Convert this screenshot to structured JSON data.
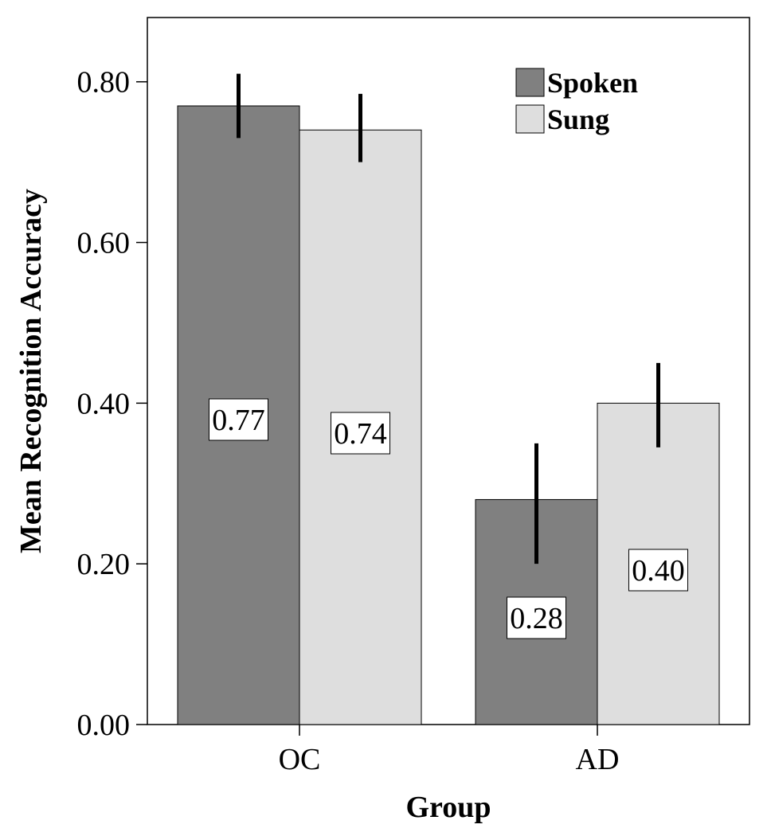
{
  "chart_data": {
    "type": "bar",
    "categories": [
      "OC",
      "AD"
    ],
    "series": [
      {
        "name": "Spoken",
        "values": [
          0.77,
          0.28
        ],
        "labels": [
          "0.77",
          "0.28"
        ],
        "error_low": [
          0.73,
          0.2
        ],
        "error_high": [
          0.81,
          0.35
        ],
        "color": "#808080"
      },
      {
        "name": "Sung",
        "values": [
          0.74,
          0.4
        ],
        "labels": [
          "0.74",
          "0.40"
        ],
        "error_low": [
          0.7,
          0.345
        ],
        "error_high": [
          0.785,
          0.45
        ],
        "color": "#dedede"
      }
    ],
    "title": "",
    "xlabel": "Group",
    "ylabel": "Mean Recognition Accuracy",
    "ylim": [
      0,
      0.88
    ],
    "yticks": [
      0,
      0.2,
      0.4,
      0.6,
      0.8
    ],
    "ytick_labels": [
      "0.00",
      "0.20",
      "0.40",
      "0.60",
      "0.80"
    ],
    "grid": false,
    "legend_position": "top-right"
  }
}
